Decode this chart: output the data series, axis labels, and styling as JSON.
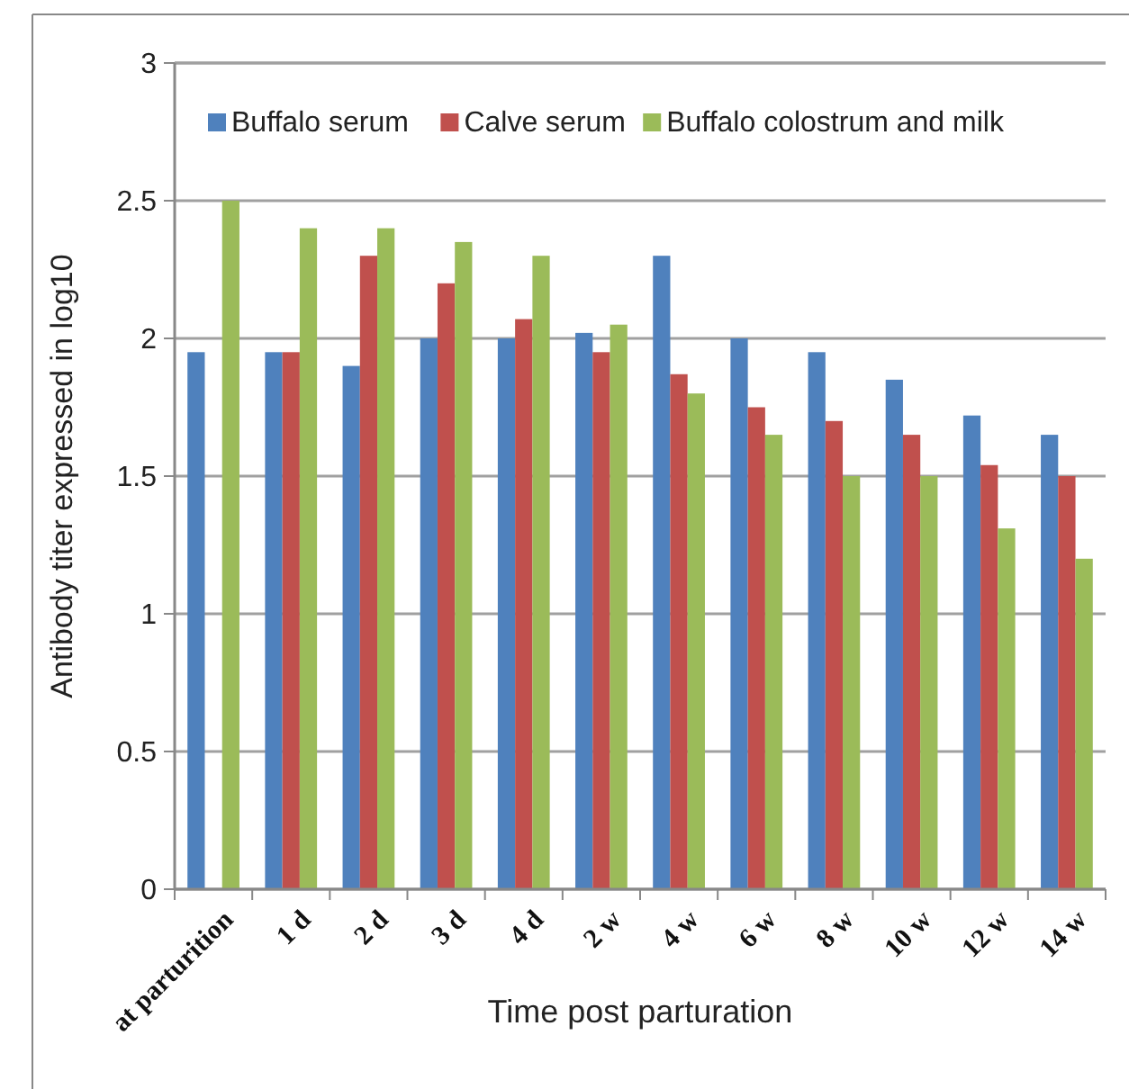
{
  "chart_data": {
    "type": "bar",
    "xlabel": "Time post parturation",
    "ylabel": "Antibody titer expressed in log10",
    "categories": [
      "at parturition",
      "1 d",
      "2 d",
      "3 d",
      "4 d",
      "2 w",
      "4 w",
      "6 w",
      "8 w",
      "10 w",
      "12 w",
      "14 w"
    ],
    "series": [
      {
        "name": "Buffalo serum",
        "color": "#4f81bd",
        "values": [
          1.95,
          1.95,
          1.9,
          2.0,
          2.0,
          2.02,
          2.3,
          2.0,
          1.95,
          1.85,
          1.72,
          1.65
        ]
      },
      {
        "name": "Calve serum",
        "color": "#c0504d",
        "values": [
          null,
          1.95,
          2.3,
          2.2,
          2.07,
          1.95,
          1.87,
          1.75,
          1.7,
          1.65,
          1.54,
          1.5
        ]
      },
      {
        "name": "Buffalo colostrum and milk",
        "color": "#9bbb59",
        "values": [
          2.5,
          2.4,
          2.4,
          2.35,
          2.3,
          2.05,
          1.8,
          1.65,
          1.5,
          1.5,
          1.31,
          1.2
        ]
      }
    ],
    "ylim": [
      0,
      3
    ],
    "yticks": [
      0,
      {
        "value": 0.5,
        "label": "0.5"
      },
      1,
      {
        "value": 1.5,
        "label": "1.5"
      },
      2,
      {
        "value": 2.5,
        "label": "2.5"
      },
      3
    ],
    "grid": "y",
    "legend": "top"
  }
}
